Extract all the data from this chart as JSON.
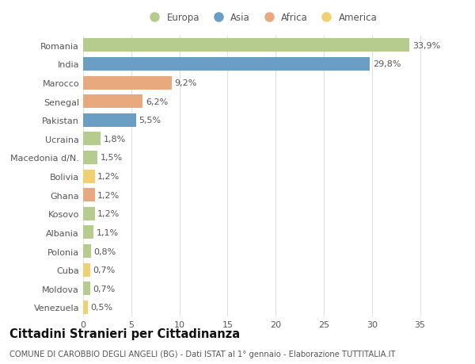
{
  "categories": [
    "Romania",
    "India",
    "Marocco",
    "Senegal",
    "Pakistan",
    "Ucraina",
    "Macedonia d/N.",
    "Bolivia",
    "Ghana",
    "Kosovo",
    "Albania",
    "Polonia",
    "Cuba",
    "Moldova",
    "Venezuela"
  ],
  "values": [
    33.9,
    29.8,
    9.2,
    6.2,
    5.5,
    1.8,
    1.5,
    1.2,
    1.2,
    1.2,
    1.1,
    0.8,
    0.7,
    0.7,
    0.5
  ],
  "labels": [
    "33,9%",
    "29,8%",
    "9,2%",
    "6,2%",
    "5,5%",
    "1,8%",
    "1,5%",
    "1,2%",
    "1,2%",
    "1,2%",
    "1,1%",
    "0,8%",
    "0,7%",
    "0,7%",
    "0,5%"
  ],
  "continents": [
    "Europa",
    "Asia",
    "Africa",
    "Africa",
    "Asia",
    "Europa",
    "Europa",
    "America",
    "Africa",
    "Europa",
    "Europa",
    "Europa",
    "America",
    "Europa",
    "America"
  ],
  "continent_colors": {
    "Europa": "#b5cc8e",
    "Asia": "#6a9ec5",
    "Africa": "#e8a97e",
    "America": "#f0d070"
  },
  "legend_order": [
    "Europa",
    "Asia",
    "Africa",
    "America"
  ],
  "title": "Cittadini Stranieri per Cittadinanza",
  "subtitle": "COMUNE DI CAROBBIO DEGLI ANGELI (BG) - Dati ISTAT al 1° gennaio - Elaborazione TUTTITALIA.IT",
  "xlim": [
    0,
    37
  ],
  "xticks": [
    0,
    5,
    10,
    15,
    20,
    25,
    30,
    35
  ],
  "bg_color": "#ffffff",
  "grid_color": "#e0e0e0",
  "bar_height": 0.72,
  "label_fontsize": 8.0,
  "tick_fontsize": 8.0,
  "title_fontsize": 10.5,
  "subtitle_fontsize": 7.2
}
